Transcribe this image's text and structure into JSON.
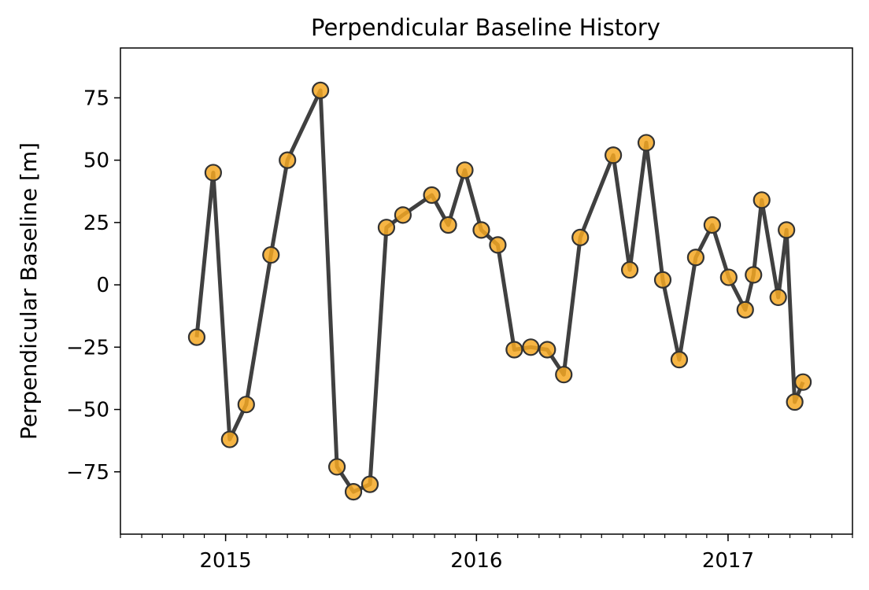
{
  "chart_data": {
    "type": "line",
    "title": "Perpendicular Baseline History",
    "xlabel": "",
    "ylabel": "Perpendicular Baseline [m]",
    "x_axis": "date",
    "xlim": [
      "2014-08-01",
      "2017-07-01"
    ],
    "ylim": [
      -100,
      95
    ],
    "yticks": [
      -75,
      -50,
      -25,
      0,
      25,
      50,
      75
    ],
    "xticks": [
      {
        "date": "2015-01-01",
        "label": "2015"
      },
      {
        "date": "2016-01-01",
        "label": "2016"
      },
      {
        "date": "2017-01-01",
        "label": "2017"
      }
    ],
    "grid": false,
    "line_color": "#404040",
    "marker_face_color": "#F5A823",
    "marker_edge_color": "#333333",
    "series": [
      {
        "x": [
          "2014-11-20",
          "2014-12-14",
          "2015-01-07",
          "2015-01-31",
          "2015-03-08",
          "2015-04-01",
          "2015-05-19",
          "2015-06-12",
          "2015-07-06",
          "2015-07-30",
          "2015-08-23",
          "2015-09-16",
          "2015-10-28",
          "2015-11-21",
          "2015-12-15",
          "2016-01-08",
          "2016-02-01",
          "2016-02-25",
          "2016-03-20",
          "2016-04-13",
          "2016-05-07",
          "2016-05-31",
          "2016-07-18",
          "2016-08-11",
          "2016-09-04",
          "2016-09-28",
          "2016-10-22",
          "2016-11-15",
          "2016-12-09",
          "2017-01-02",
          "2017-01-26",
          "2017-02-07",
          "2017-02-19",
          "2017-03-15",
          "2017-03-27",
          "2017-04-08",
          "2017-04-20"
        ],
        "y": [
          -21,
          45,
          -62,
          -48,
          12,
          50,
          78,
          -73,
          -83,
          -80,
          23,
          28,
          36,
          24,
          46,
          22,
          16,
          -26,
          -25,
          -26,
          -36,
          19,
          52,
          6,
          57,
          2,
          -30,
          11,
          24,
          3,
          -10,
          4,
          34,
          -5,
          22,
          -47,
          -39
        ]
      }
    ]
  }
}
